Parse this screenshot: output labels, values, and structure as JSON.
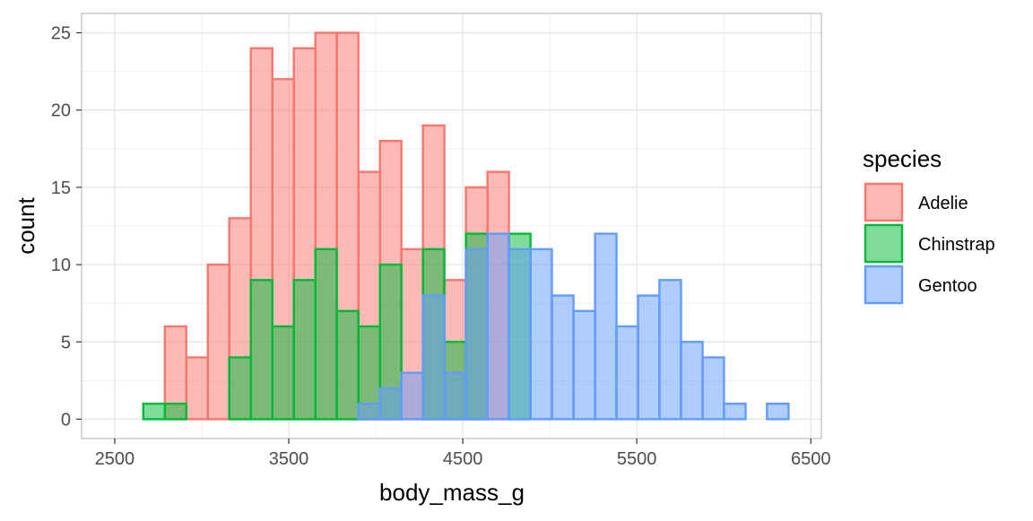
{
  "chart_data": {
    "type": "histogram",
    "xlabel": "body_mass_g",
    "ylabel": "count",
    "xlim": [
      2500,
      6500
    ],
    "ylim": [
      0,
      25
    ],
    "x_ticks": [
      2500,
      3500,
      4500,
      5500,
      6500
    ],
    "y_ticks": [
      0,
      5,
      10,
      15,
      20,
      25
    ],
    "grid": true,
    "bin_width": 123.6,
    "bin_edges_start": 2664,
    "legend": {
      "title": "species",
      "position": "right"
    },
    "series": [
      {
        "name": "Adelie",
        "fill": "#f8766d",
        "stroke": "#f8766d",
        "bins": [
          {
            "x0": 2788,
            "x1": 2911,
            "count": 6
          },
          {
            "x0": 2911,
            "x1": 3035,
            "count": 4
          },
          {
            "x0": 3035,
            "x1": 3158,
            "count": 10
          },
          {
            "x0": 3158,
            "x1": 3282,
            "count": 13
          },
          {
            "x0": 3282,
            "x1": 3406,
            "count": 24
          },
          {
            "x0": 3406,
            "x1": 3529,
            "count": 22
          },
          {
            "x0": 3529,
            "x1": 3653,
            "count": 24
          },
          {
            "x0": 3653,
            "x1": 3776,
            "count": 25
          },
          {
            "x0": 3776,
            "x1": 3900,
            "count": 25
          },
          {
            "x0": 3900,
            "x1": 4024,
            "count": 16
          },
          {
            "x0": 4024,
            "x1": 4147,
            "count": 18
          },
          {
            "x0": 4147,
            "x1": 4271,
            "count": 11
          },
          {
            "x0": 4271,
            "x1": 4394,
            "count": 19
          },
          {
            "x0": 4394,
            "x1": 4518,
            "count": 9
          },
          {
            "x0": 4518,
            "x1": 4642,
            "count": 15
          },
          {
            "x0": 4642,
            "x1": 4765,
            "count": 16
          }
        ]
      },
      {
        "name": "Chinstrap",
        "fill": "#00ba38",
        "stroke": "#00ba38",
        "bins": [
          {
            "x0": 2664,
            "x1": 2788,
            "count": 1
          },
          {
            "x0": 2788,
            "x1": 2911,
            "count": 1
          },
          {
            "x0": 3158,
            "x1": 3282,
            "count": 4
          },
          {
            "x0": 3282,
            "x1": 3406,
            "count": 9
          },
          {
            "x0": 3406,
            "x1": 3529,
            "count": 6
          },
          {
            "x0": 3529,
            "x1": 3653,
            "count": 9
          },
          {
            "x0": 3653,
            "x1": 3776,
            "count": 11
          },
          {
            "x0": 3776,
            "x1": 3900,
            "count": 7
          },
          {
            "x0": 3900,
            "x1": 4024,
            "count": 6
          },
          {
            "x0": 4024,
            "x1": 4147,
            "count": 10
          },
          {
            "x0": 4271,
            "x1": 4394,
            "count": 11
          },
          {
            "x0": 4394,
            "x1": 4518,
            "count": 5
          },
          {
            "x0": 4518,
            "x1": 4642,
            "count": 12
          },
          {
            "x0": 4765,
            "x1": 4889,
            "count": 12
          }
        ]
      },
      {
        "name": "Gentoo",
        "fill": "#619cff",
        "stroke": "#619cff",
        "bins": [
          {
            "x0": 3900,
            "x1": 4024,
            "count": 1
          },
          {
            "x0": 4024,
            "x1": 4147,
            "count": 2
          },
          {
            "x0": 4147,
            "x1": 4271,
            "count": 3
          },
          {
            "x0": 4271,
            "x1": 4394,
            "count": 8
          },
          {
            "x0": 4394,
            "x1": 4518,
            "count": 3
          },
          {
            "x0": 4518,
            "x1": 4642,
            "count": 11
          },
          {
            "x0": 4642,
            "x1": 4765,
            "count": 12
          },
          {
            "x0": 4765,
            "x1": 4889,
            "count": 11
          },
          {
            "x0": 4889,
            "x1": 5012,
            "count": 11
          },
          {
            "x0": 5012,
            "x1": 5136,
            "count": 8
          },
          {
            "x0": 5136,
            "x1": 5260,
            "count": 7
          },
          {
            "x0": 5260,
            "x1": 5383,
            "count": 12
          },
          {
            "x0": 5383,
            "x1": 5507,
            "count": 6
          },
          {
            "x0": 5507,
            "x1": 5630,
            "count": 8
          },
          {
            "x0": 5630,
            "x1": 5754,
            "count": 9
          },
          {
            "x0": 5754,
            "x1": 5878,
            "count": 5
          },
          {
            "x0": 5878,
            "x1": 6001,
            "count": 4
          },
          {
            "x0": 6001,
            "x1": 6125,
            "count": 1
          },
          {
            "x0": 6125,
            "x1": 6248,
            "count": 0
          },
          {
            "x0": 6248,
            "x1": 6372,
            "count": 1
          }
        ]
      }
    ]
  }
}
